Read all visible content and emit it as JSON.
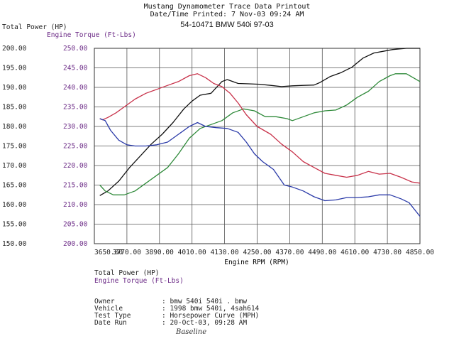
{
  "header": {
    "title": "Mustang Dynamometer Trace Data Printout",
    "printed": "Date/Time Printed: 7 Nov-03 09:24 AM",
    "run_id": "54-10471 BMW 540i 97-03"
  },
  "info": [
    {
      "key": "Owner",
      "value": ": bmw 540i 540i  . bmw"
    },
    {
      "key": "Vehicle",
      "value": ": 1998 bmw 540i, 4sah614"
    },
    {
      "key": "Test Type",
      "value": ": Horsepower Curve (MPH)"
    },
    {
      "key": "Date Run",
      "value": ": 20-Oct-03, 09:28 AM"
    }
  ],
  "annotation": "Baseline",
  "colors": {
    "power_old": "#c8324a",
    "power_new": "#111111",
    "torque_old": "#2a3aa8",
    "torque_new": "#2f8a3a",
    "grid": "#555555",
    "torque_axis": "#6b2a86"
  },
  "chart_data": {
    "type": "line",
    "xlabel": "Engine RPM (RPM)",
    "y_left_label": "Total Power (HP)",
    "y_right_label": "Engine Torque (Ft-Lbs)",
    "xlim": [
      3650,
      4850
    ],
    "ylim_power": [
      150,
      200
    ],
    "ylim_torque": [
      200,
      250
    ],
    "x_ticks": [
      "3650.00",
      "3770.00",
      "3890.00",
      "4010.00",
      "4130.00",
      "4250.00",
      "4370.00",
      "4490.00",
      "4610.00",
      "4730.00",
      "4850.00"
    ],
    "y_ticks_power": [
      "200.00",
      "195.00",
      "190.00",
      "185.00",
      "180.00",
      "175.00",
      "170.00",
      "165.00",
      "160.00",
      "155.00",
      "150.00"
    ],
    "y_ticks_torque": [
      "250.00",
      "245.00",
      "240.00",
      "235.00",
      "230.00",
      "225.00",
      "220.00",
      "215.00",
      "210.00",
      "205.00",
      "200.00"
    ],
    "grid": true,
    "series": [
      {
        "name": "Total Power (HP)",
        "axis": "power",
        "color_key": "power_new",
        "x": [
          3670,
          3700,
          3740,
          3780,
          3820,
          3860,
          3900,
          3940,
          3980,
          4010,
          4040,
          4080,
          4120,
          4140,
          4180,
          4220,
          4260,
          4300,
          4340,
          4380,
          4420,
          4460,
          4480,
          4520,
          4560,
          4600,
          4640,
          4680,
          4720,
          4750,
          4800,
          4850
        ],
        "y": [
          162.3,
          163.5,
          166.0,
          169.5,
          172.5,
          175.5,
          178.0,
          181.0,
          184.5,
          186.5,
          188.0,
          188.5,
          191.5,
          192.0,
          191.0,
          190.9,
          190.8,
          190.5,
          190.2,
          190.4,
          190.5,
          190.6,
          191.2,
          192.8,
          193.8,
          195.2,
          197.5,
          198.8,
          199.3,
          199.7,
          200.0,
          200.0
        ]
      },
      {
        "name": "Engine Torque (Ft-Lbs)",
        "axis": "torque",
        "color_key": "torque_new",
        "x": [
          3670,
          3690,
          3720,
          3760,
          3800,
          3840,
          3880,
          3920,
          3960,
          4000,
          4040,
          4080,
          4120,
          4160,
          4200,
          4240,
          4280,
          4320,
          4360,
          4380,
          4420,
          4460,
          4500,
          4540,
          4580,
          4620,
          4660,
          4700,
          4740,
          4760,
          4800,
          4850
        ],
        "y": [
          215.0,
          213.5,
          212.5,
          212.5,
          213.5,
          215.5,
          217.5,
          219.5,
          223.0,
          227.0,
          229.5,
          230.5,
          231.5,
          233.5,
          234.5,
          234.0,
          232.5,
          232.5,
          232.0,
          231.5,
          232.5,
          233.5,
          234.0,
          234.2,
          235.5,
          237.5,
          239.0,
          241.5,
          243.0,
          243.5,
          243.5,
          241.5
        ]
      },
      {
        "name": "Total Power (HP)",
        "axis": "power",
        "color_key": "power_old",
        "x": [
          3670,
          3680,
          3700,
          3730,
          3760,
          3800,
          3840,
          3880,
          3920,
          3960,
          4000,
          4030,
          4060,
          4090,
          4120,
          4150,
          4180,
          4210,
          4250,
          4300,
          4340,
          4380,
          4420,
          4460,
          4500,
          4540,
          4580,
          4620,
          4660,
          4700,
          4740,
          4780,
          4820,
          4850
        ],
        "y": [
          182.0,
          181.7,
          182.3,
          183.5,
          185.0,
          187.0,
          188.5,
          189.5,
          190.5,
          191.5,
          193.0,
          193.5,
          192.5,
          191.0,
          190.2,
          188.5,
          186.0,
          183.0,
          180.0,
          178.0,
          175.5,
          173.5,
          171.0,
          169.5,
          168.0,
          167.5,
          167.0,
          167.5,
          168.5,
          167.8,
          168.0,
          167.0,
          165.8,
          165.5
        ]
      },
      {
        "name": "Engine Torque (Ft-Lbs)",
        "axis": "torque",
        "color_key": "torque_old",
        "x": [
          3670,
          3690,
          3710,
          3740,
          3770,
          3800,
          3840,
          3880,
          3920,
          3960,
          4000,
          4030,
          4060,
          4100,
          4140,
          4180,
          4210,
          4240,
          4270,
          4310,
          4350,
          4380,
          4420,
          4460,
          4500,
          4540,
          4580,
          4620,
          4660,
          4700,
          4740,
          4780,
          4810,
          4850
        ],
        "y": [
          232.0,
          231.5,
          229.0,
          226.5,
          225.3,
          225.0,
          225.0,
          225.3,
          226.0,
          228.0,
          230.0,
          231.0,
          230.0,
          229.7,
          229.5,
          228.5,
          226.0,
          223.0,
          221.0,
          219.0,
          215.0,
          214.5,
          213.5,
          212.0,
          211.0,
          211.2,
          211.8,
          211.8,
          212.0,
          212.5,
          212.5,
          211.5,
          210.5,
          207.0
        ]
      }
    ]
  }
}
